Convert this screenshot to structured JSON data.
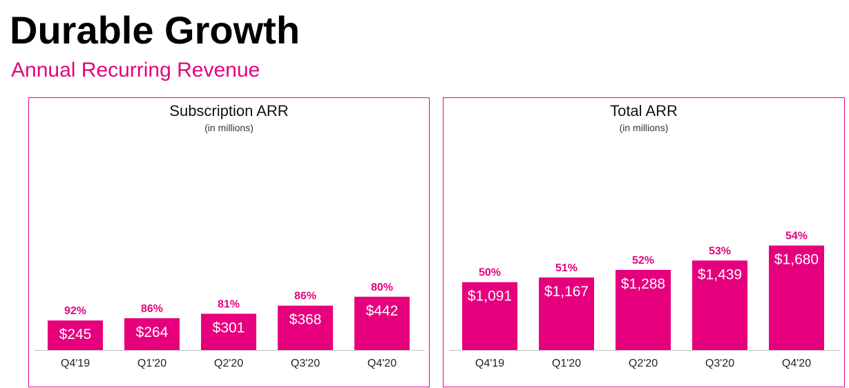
{
  "page": {
    "title": "Durable Growth",
    "subtitle": "Annual Recurring Revenue"
  },
  "colors": {
    "accent": "#E6007E",
    "bar": "#E6007E",
    "bar_label": "#FFFFFF",
    "pct_label": "#E6007E"
  },
  "chart_data": [
    {
      "type": "bar",
      "title": "Subscription ARR",
      "subtitle": "(in millions)",
      "categories": [
        "Q4'19",
        "Q1'20",
        "Q2'20",
        "Q3'20",
        "Q4'20"
      ],
      "values": [
        245,
        264,
        301,
        368,
        442
      ],
      "value_labels": [
        "$245",
        "$264",
        "$301",
        "$368",
        "$442"
      ],
      "percent_labels": [
        "92%",
        "86%",
        "81%",
        "86%",
        "80%"
      ]
    },
    {
      "type": "bar",
      "title": "Total ARR",
      "subtitle": "(in millions)",
      "categories": [
        "Q4'19",
        "Q1'20",
        "Q2'20",
        "Q3'20",
        "Q4'20"
      ],
      "values": [
        1091,
        1167,
        1288,
        1439,
        1680
      ],
      "value_labels": [
        "$1,091",
        "$1,167",
        "$1,288",
        "$1,439",
        "$1,680"
      ],
      "percent_labels": [
        "50%",
        "51%",
        "52%",
        "53%",
        "54%"
      ]
    }
  ]
}
